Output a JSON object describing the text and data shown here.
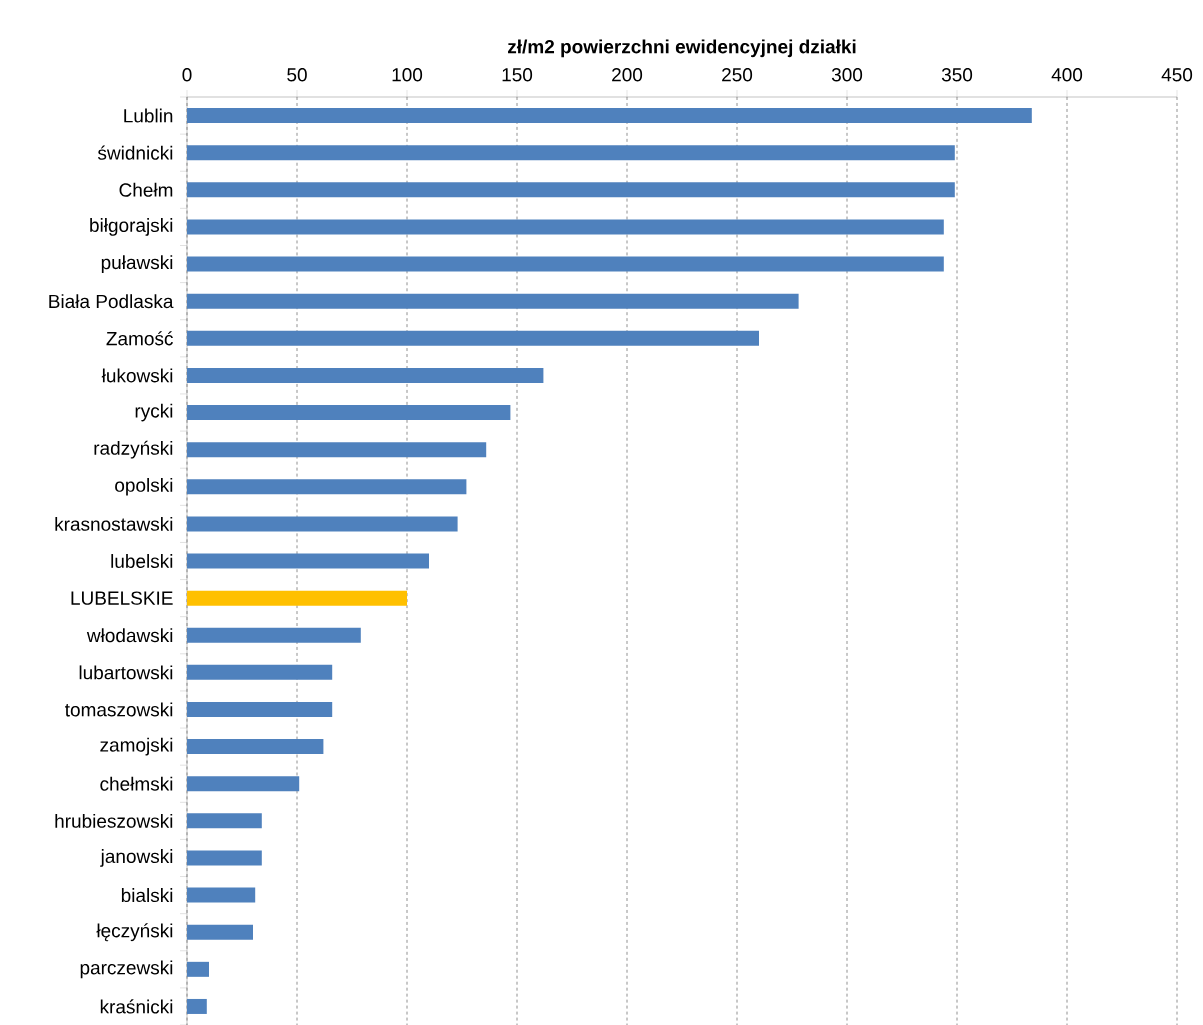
{
  "chart_data": {
    "type": "bar",
    "orientation": "horizontal",
    "xlabel": "**zł/m2 powierzchni ewidencyjnej działki**",
    "categories": [
      "Lublin",
      "świdnicki",
      "Chełm",
      "biłgorajski",
      "puławski",
      "Biała Podlaska",
      "Zamość",
      "łukowski",
      "rycki",
      "radzyński",
      "opolski",
      "krasnostawski",
      "lubelski",
      "LUBELSKIE",
      "włodawski",
      "lubartowski",
      "tomaszowski",
      "zamojski",
      "chełmski",
      "hrubieszowski",
      "janowski",
      "bialski",
      "łęczyński",
      "parczewski",
      "kraśnicki"
    ],
    "values": [
      384,
      349,
      349,
      344,
      344,
      278,
      260,
      162,
      147,
      136,
      127,
      123,
      110,
      100,
      79,
      66,
      66,
      62,
      51,
      34,
      34,
      31,
      30,
      10,
      9
    ],
    "colors": [
      "#4f81bd",
      "#4f81bd",
      "#4f81bd",
      "#4f81bd",
      "#4f81bd",
      "#4f81bd",
      "#4f81bd",
      "#4f81bd",
      "#4f81bd",
      "#4f81bd",
      "#4f81bd",
      "#4f81bd",
      "#4f81bd",
      "#ffc000",
      "#4f81bd",
      "#4f81bd",
      "#4f81bd",
      "#4f81bd",
      "#4f81bd",
      "#4f81bd",
      "#4f81bd",
      "#4f81bd",
      "#4f81bd",
      "#4f81bd",
      "#4f81bd"
    ],
    "xlim": [
      0,
      450
    ],
    "xticks": [
      0,
      50,
      100,
      150,
      200,
      250,
      300,
      350,
      400,
      450
    ],
    "grid": "x"
  }
}
